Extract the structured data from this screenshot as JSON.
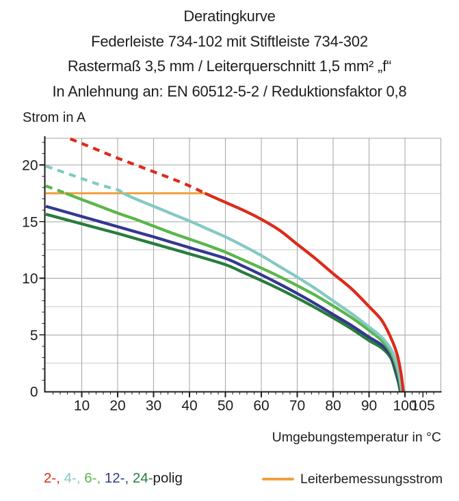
{
  "title": {
    "line1": "Deratingkurve",
    "line2": "Federleiste 734-102 mit Stiftleiste 734-302",
    "line3": "Rastermaß 3,5 mm / Leiterquerschnitt 1,5 mm² „f“",
    "line4": "In Anlehnung an: EN 60512-5-2 / Reduktionsfaktor 0,8"
  },
  "chart_data": {
    "type": "line",
    "title": "Deratingkurve",
    "xlabel": "Umgebungstemperatur in °C",
    "ylabel": "Strom in A",
    "xlim": [
      0,
      110
    ],
    "ylim": [
      0,
      22.35
    ],
    "x_ticks": [
      10,
      20,
      30,
      40,
      50,
      60,
      70,
      80,
      90,
      100,
      105
    ],
    "y_ticks": [
      0,
      5,
      10,
      15,
      20
    ],
    "x_minor_tick_step": 2,
    "y_minor_tick_step": 1,
    "grid": {
      "x_step": 10,
      "y_major_step": 5,
      "y_minor_step": 2.5,
      "major_color": "#a3a3a3",
      "minor_color": "#c9c9c9"
    },
    "axis_color": "#1d1d1b",
    "legend_position": "bottom",
    "rated_current": {
      "name": "Leiterbemessungsstrom",
      "value": 17.5,
      "x_start": 0,
      "x_end": 44.3,
      "color": "#f0a03c"
    },
    "series": [
      {
        "name": "24-polig",
        "color": "#287c3d",
        "solid_points": [
          [
            0,
            15.65
          ],
          [
            10,
            14.8
          ],
          [
            20,
            13.95
          ],
          [
            30,
            13.05
          ],
          [
            40,
            12.15
          ],
          [
            50,
            11.2
          ],
          [
            55,
            10.5
          ],
          [
            60,
            9.8
          ],
          [
            65,
            9.05
          ],
          [
            70,
            8.25
          ],
          [
            75,
            7.4
          ],
          [
            80,
            6.5
          ],
          [
            85,
            5.55
          ],
          [
            90,
            4.5
          ],
          [
            93.5,
            3.85
          ],
          [
            96,
            3.0
          ],
          [
            97.2,
            1.9
          ],
          [
            98.1,
            0.9
          ],
          [
            98.7,
            0
          ]
        ]
      },
      {
        "name": "12-polig",
        "color": "#35388f",
        "solid_points": [
          [
            0,
            16.35
          ],
          [
            10,
            15.45
          ],
          [
            20,
            14.55
          ],
          [
            30,
            13.65
          ],
          [
            40,
            12.7
          ],
          [
            50,
            11.75
          ],
          [
            55,
            11.05
          ],
          [
            60,
            10.3
          ],
          [
            65,
            9.5
          ],
          [
            70,
            8.65
          ],
          [
            75,
            7.75
          ],
          [
            80,
            6.8
          ],
          [
            85,
            5.85
          ],
          [
            90,
            4.8
          ],
          [
            93.5,
            4.1
          ],
          [
            96,
            3.2
          ],
          [
            97.3,
            2.1
          ],
          [
            98.2,
            1.0
          ],
          [
            98.8,
            0
          ]
        ]
      },
      {
        "name": "6-polig",
        "color": "#5bb64b",
        "dashed_points": [
          [
            0,
            18.15
          ],
          [
            3,
            17.8
          ],
          [
            5.5,
            17.5
          ]
        ],
        "solid_points": [
          [
            5.5,
            17.5
          ],
          [
            10,
            16.95
          ],
          [
            15,
            16.35
          ],
          [
            20,
            15.75
          ],
          [
            25,
            15.2
          ],
          [
            30,
            14.6
          ],
          [
            35,
            14.0
          ],
          [
            40,
            13.45
          ],
          [
            45,
            12.9
          ],
          [
            50,
            12.3
          ],
          [
            55,
            11.6
          ],
          [
            60,
            10.9
          ],
          [
            65,
            10.15
          ],
          [
            70,
            9.35
          ],
          [
            75,
            8.5
          ],
          [
            80,
            7.55
          ],
          [
            85,
            6.55
          ],
          [
            90,
            5.4
          ],
          [
            93.5,
            4.5
          ],
          [
            96,
            3.5
          ],
          [
            97.4,
            2.4
          ],
          [
            98.4,
            1.2
          ],
          [
            99,
            0
          ]
        ]
      },
      {
        "name": "4-polig",
        "color": "#84c9c4",
        "dashed_points": [
          [
            0,
            19.9
          ],
          [
            5,
            19.35
          ],
          [
            10,
            18.8
          ],
          [
            15,
            18.25
          ],
          [
            20,
            17.8
          ],
          [
            21.5,
            17.5
          ]
        ],
        "solid_points": [
          [
            21.5,
            17.5
          ],
          [
            25,
            17.0
          ],
          [
            30,
            16.35
          ],
          [
            35,
            15.7
          ],
          [
            40,
            15.05
          ],
          [
            45,
            14.35
          ],
          [
            50,
            13.65
          ],
          [
            55,
            12.85
          ],
          [
            60,
            12.0
          ],
          [
            65,
            11.05
          ],
          [
            70,
            10.1
          ],
          [
            75,
            9.1
          ],
          [
            80,
            8.0
          ],
          [
            85,
            6.9
          ],
          [
            90,
            5.7
          ],
          [
            93.5,
            4.8
          ],
          [
            96,
            3.8
          ],
          [
            97.5,
            2.7
          ],
          [
            98.5,
            1.4
          ],
          [
            99,
            0.5
          ],
          [
            99.2,
            0
          ]
        ]
      },
      {
        "name": "2-polig",
        "color": "#dd2a1b",
        "dashed_points": [
          [
            6.8,
            22.3
          ],
          [
            10,
            21.9
          ],
          [
            15,
            21.25
          ],
          [
            20,
            20.6
          ],
          [
            25,
            20.0
          ],
          [
            30,
            19.4
          ],
          [
            35,
            18.8
          ],
          [
            40,
            18.15
          ],
          [
            44.3,
            17.5
          ]
        ],
        "solid_points": [
          [
            44.3,
            17.5
          ],
          [
            50,
            16.7
          ],
          [
            55,
            16.0
          ],
          [
            60,
            15.2
          ],
          [
            65,
            14.25
          ],
          [
            70,
            13.0
          ],
          [
            75,
            11.75
          ],
          [
            80,
            10.4
          ],
          [
            85,
            9.1
          ],
          [
            90,
            7.5
          ],
          [
            93.5,
            6.3
          ],
          [
            96,
            4.8
          ],
          [
            97.8,
            3.3
          ],
          [
            98.8,
            1.8
          ],
          [
            99.3,
            0.7
          ],
          [
            99.5,
            0
          ]
        ]
      }
    ]
  },
  "legend": {
    "poles_parts": [
      {
        "text": "2-,",
        "color": "#dd2a1b"
      },
      {
        "text": " 4-,",
        "color": "#84c9c4"
      },
      {
        "text": " 6-,",
        "color": "#5bb64b"
      },
      {
        "text": " 12-,",
        "color": "#35388f"
      },
      {
        "text": " 24-",
        "color": "#287c3d"
      },
      {
        "text": "polig",
        "color": "#1d1d1b"
      }
    ],
    "rated_label": "Leiterbemessungsstrom",
    "rated_color": "#f0a03c"
  }
}
